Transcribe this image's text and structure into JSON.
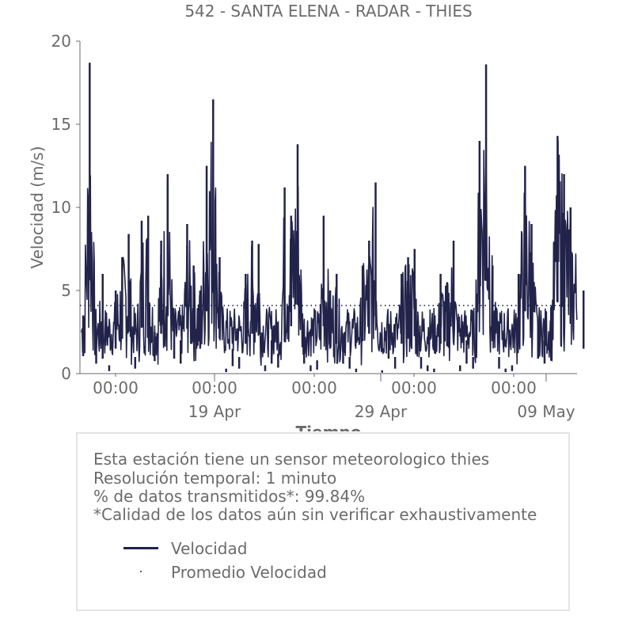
{
  "chart_data": {
    "type": "line",
    "title": "542 - SANTA ELENA - RADAR - THIES",
    "xlabel": "Tiempo",
    "ylabel": "Velocidad (m/s)",
    "ylim": [
      0,
      20
    ],
    "yticks": [
      0,
      5,
      10,
      15,
      20
    ],
    "xlim_days": [
      "2024-04-14",
      "2024-05-09T12:00"
    ],
    "xticks_minor_labels": [
      "00:00",
      "00:00",
      "00:00",
      "00:00",
      "00:00"
    ],
    "xticks_major_labels": [
      "19 Apr",
      "29 Apr",
      "09 May"
    ],
    "grid": false,
    "line_color": "#22234a",
    "series": [
      {
        "name": "Velocidad",
        "style": "line",
        "x": [
          "04-14",
          "04-14",
          "04-14",
          "04-15",
          "04-15",
          "04-15",
          "04-15",
          "04-16",
          "04-16",
          "04-16",
          "04-17",
          "04-17",
          "04-17",
          "04-18",
          "04-18",
          "04-18",
          "04-18",
          "04-19",
          "04-19",
          "04-19",
          "04-20",
          "04-20",
          "04-20",
          "04-21",
          "04-21",
          "04-21",
          "04-22",
          "04-22",
          "04-22",
          "04-23",
          "04-23",
          "04-23",
          "04-24",
          "04-24",
          "04-24",
          "04-25",
          "04-25",
          "04-25",
          "04-26",
          "04-26",
          "04-26",
          "04-27",
          "04-27",
          "04-27",
          "04-28",
          "04-28",
          "04-28",
          "04-29",
          "04-29",
          "04-29",
          "04-30",
          "04-30",
          "04-30",
          "05-01",
          "05-01",
          "05-01",
          "05-02",
          "05-02",
          "05-02",
          "05-03",
          "05-03",
          "05-03",
          "05-04",
          "05-04",
          "05-04",
          "05-05",
          "05-05",
          "05-05",
          "05-06",
          "05-06",
          "05-06",
          "05-07",
          "05-07",
          "05-07",
          "05-08",
          "05-08",
          "05-08",
          "05-09",
          "05-09"
        ],
        "values": [
          3.5,
          18.7,
          2.0,
          6.0,
          0.5,
          5.0,
          3.0,
          8.4,
          1.0,
          7.0,
          9.5,
          2.5,
          9.2,
          11.5,
          3.0,
          8.0,
          12.0,
          6.5,
          2.0,
          9.0,
          16.5,
          5.0,
          12.5,
          1.5,
          7.0,
          0.3,
          8.0,
          1.0,
          6.0,
          2.0,
          7.8,
          0.5,
          9.5,
          1.2,
          11.2,
          0.5,
          13.8,
          2.0,
          5.0,
          0.8,
          9.5,
          1.0,
          6.0,
          2.0,
          8.0,
          0.3,
          6.5,
          3.0,
          11.5,
          0.2,
          7.0,
          1.0,
          6.0,
          0.5,
          7.5,
          1.0,
          5.5,
          0.3,
          6.0,
          2.0,
          8.0,
          0.5,
          18.6,
          1.0,
          14.0,
          0.3,
          6.5,
          1.0,
          12.5,
          0.5,
          6.0,
          2.0,
          9.0,
          3.0,
          12.0,
          4.0,
          14.3,
          5.0,
          10.0
        ]
      },
      {
        "name": "Promedio Velocidad",
        "style": "dotted",
        "value": 4.1
      }
    ]
  },
  "info": {
    "line1": "Esta estación tiene un sensor meteorologico thies",
    "line2": "Resolución temporal: 1 minuto",
    "line3": "% de datos transmitidos*: 99.84%",
    "line4": "*Calidad de los datos aún sin verificar exhaustivamente"
  },
  "legend": {
    "velocidad": "Velocidad",
    "promedio": "Promedio Velocidad"
  }
}
